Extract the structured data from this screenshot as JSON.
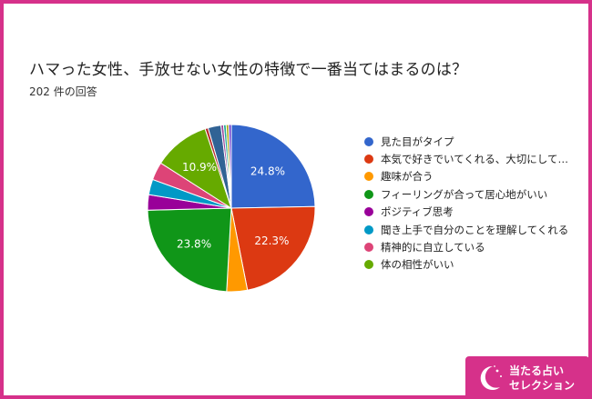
{
  "title": "ハマった女性、手放せない女性の特徴で一番当てはまるのは？",
  "subtitle": "202 件の回答",
  "badge": {
    "line1": "当たる占い",
    "line2": "セレクション"
  },
  "chart_data": {
    "type": "pie",
    "title": "ハマった女性、手放せない女性の特徴で一番当てはまるのは？",
    "subtitle": "202 件の回答",
    "legend_position": "right",
    "slices": [
      {
        "label": "見た目がタイプ",
        "value": 24.8,
        "color": "#3366cc",
        "data_label": "24.8%"
      },
      {
        "label": "本気で好きでいてくれる、大切にして…",
        "value": 22.3,
        "color": "#dc3912",
        "data_label": "22.3%"
      },
      {
        "label": "趣味が合う",
        "value": 4.0,
        "color": "#ff9900",
        "data_label": ""
      },
      {
        "label": "フィーリングが合って居心地がいい",
        "value": 23.8,
        "color": "#109618",
        "data_label": "23.8%"
      },
      {
        "label": "ポジティブ思考",
        "value": 3.0,
        "color": "#990099",
        "data_label": ""
      },
      {
        "label": "聞き上手で自分のことを理解してくれる",
        "value": 3.0,
        "color": "#0099c6",
        "data_label": ""
      },
      {
        "label": "精神的に自立している",
        "value": 3.5,
        "color": "#dd4477",
        "data_label": ""
      },
      {
        "label": "体の相性がいい",
        "value": 10.9,
        "color": "#66aa00",
        "data_label": "10.9%"
      },
      {
        "label": "",
        "value": 0.6,
        "color": "#b82e2e",
        "data_label": ""
      },
      {
        "label": "",
        "value": 2.5,
        "color": "#316395",
        "data_label": ""
      },
      {
        "label": "",
        "value": 0.5,
        "color": "#994499",
        "data_label": ""
      },
      {
        "label": "",
        "value": 0.5,
        "color": "#22aa99",
        "data_label": ""
      },
      {
        "label": "",
        "value": 0.5,
        "color": "#aaaa11",
        "data_label": ""
      },
      {
        "label": "",
        "value": 0.5,
        "color": "#6633cc",
        "data_label": ""
      }
    ]
  }
}
